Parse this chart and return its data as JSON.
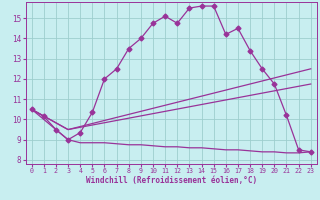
{
  "bg_color": "#c8eef0",
  "line_color": "#993399",
  "grid_color": "#9ecece",
  "xlim": [
    -0.5,
    23.5
  ],
  "ylim": [
    7.8,
    15.8
  ],
  "xticks": [
    0,
    1,
    2,
    3,
    4,
    5,
    6,
    7,
    8,
    9,
    10,
    11,
    12,
    13,
    14,
    15,
    16,
    17,
    18,
    19,
    20,
    21,
    22,
    23
  ],
  "yticks": [
    8,
    9,
    10,
    11,
    12,
    13,
    14,
    15
  ],
  "xlabel": "Windchill (Refroidissement éolien,°C)",
  "line1_x": [
    0,
    1,
    2,
    3,
    4,
    5,
    6,
    7,
    8,
    9,
    10,
    11,
    12,
    13,
    14,
    15,
    16,
    17,
    18,
    19,
    20,
    21,
    22,
    23
  ],
  "line1_y": [
    10.5,
    10.15,
    9.5,
    9.0,
    9.35,
    10.35,
    12.0,
    12.5,
    13.5,
    14.0,
    14.75,
    15.1,
    14.75,
    15.5,
    15.6,
    15.6,
    14.2,
    14.5,
    13.4,
    12.5,
    11.75,
    10.2,
    8.5,
    8.4
  ],
  "line2_x": [
    0,
    3,
    23
  ],
  "line2_y": [
    10.5,
    9.5,
    12.5
  ],
  "line3_x": [
    0,
    3,
    23
  ],
  "line3_y": [
    10.5,
    9.5,
    11.75
  ],
  "line4_x": [
    0,
    3,
    4,
    5,
    6,
    7,
    8,
    9,
    10,
    11,
    12,
    13,
    14,
    15,
    16,
    17,
    18,
    19,
    20,
    21,
    22,
    23
  ],
  "line4_y": [
    10.5,
    9.0,
    8.85,
    8.85,
    8.85,
    8.8,
    8.75,
    8.75,
    8.7,
    8.65,
    8.65,
    8.6,
    8.6,
    8.55,
    8.5,
    8.5,
    8.45,
    8.4,
    8.4,
    8.35,
    8.35,
    8.4
  ],
  "marker": "D",
  "markersize": 2.5,
  "linewidth": 0.9
}
